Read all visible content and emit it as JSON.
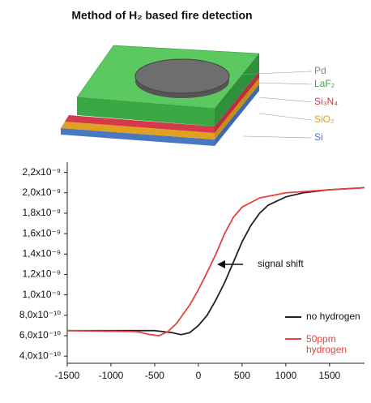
{
  "chart_data": {
    "type": "line",
    "title": "Method of H₂ based fire detection",
    "annotation": "signal shift",
    "xlim": [
      -1500,
      1900
    ],
    "xticks": [
      -1500,
      -1000,
      -500,
      0,
      500,
      1000,
      1500
    ],
    "ylim": [
      3.3e-10,
      2.3e-09
    ],
    "yticks": [
      {
        "value": 4e-10,
        "label": "4,0x10⁻¹⁰"
      },
      {
        "value": 6e-10,
        "label": "6,0x10⁻¹⁰"
      },
      {
        "value": 8e-10,
        "label": "8,0x10⁻¹⁰"
      },
      {
        "value": 1e-09,
        "label": "1,0x10⁻⁹"
      },
      {
        "value": 1.2e-09,
        "label": "1,2x10⁻⁹"
      },
      {
        "value": 1.4e-09,
        "label": "1,4x10⁻⁹"
      },
      {
        "value": 1.6e-09,
        "label": "1,6x10⁻⁹"
      },
      {
        "value": 1.8e-09,
        "label": "1,8x10⁻⁹"
      },
      {
        "value": 2e-09,
        "label": "2,0x10⁻⁹"
      },
      {
        "value": 2.2e-09,
        "label": "2,2x10⁻⁹"
      }
    ],
    "grid": false,
    "series": [
      {
        "name": "no hydrogen",
        "color": "#222222",
        "x": [
          -1500,
          -500,
          -300,
          -200,
          -100,
          0,
          100,
          200,
          300,
          400,
          500,
          600,
          700,
          800,
          1000,
          1200,
          1500,
          1900
        ],
        "values": [
          6.5e-10,
          6.5e-10,
          6.3e-10,
          6.1e-10,
          6.3e-10,
          7e-10,
          8e-10,
          9.5e-10,
          1.12e-09,
          1.32e-09,
          1.52e-09,
          1.68e-09,
          1.8e-09,
          1.88e-09,
          1.96e-09,
          2e-09,
          2.03e-09,
          2.05e-09
        ]
      },
      {
        "name": "50ppm hydrogen",
        "color": "#e8413c",
        "x": [
          -1500,
          -700,
          -550,
          -450,
          -350,
          -250,
          -100,
          0,
          100,
          200,
          300,
          400,
          500,
          700,
          1000,
          1500,
          1900
        ],
        "values": [
          6.5e-10,
          6.4e-10,
          6.1e-10,
          6e-10,
          6.4e-10,
          7.2e-10,
          9e-10,
          1.05e-09,
          1.22e-09,
          1.4e-09,
          1.6e-09,
          1.76e-09,
          1.86e-09,
          1.95e-09,
          2e-09,
          2.03e-09,
          2.05e-09
        ]
      }
    ]
  },
  "diagram": {
    "layers": [
      {
        "label": "Pd",
        "color": "#888888"
      },
      {
        "label": "LaF₂",
        "color": "#3aa845"
      },
      {
        "label": "Si₃N₄",
        "color": "#d33a4a"
      },
      {
        "label": "SiO₂",
        "color": "#e0a020"
      },
      {
        "label": "Si",
        "color": "#4a78c0"
      }
    ]
  }
}
